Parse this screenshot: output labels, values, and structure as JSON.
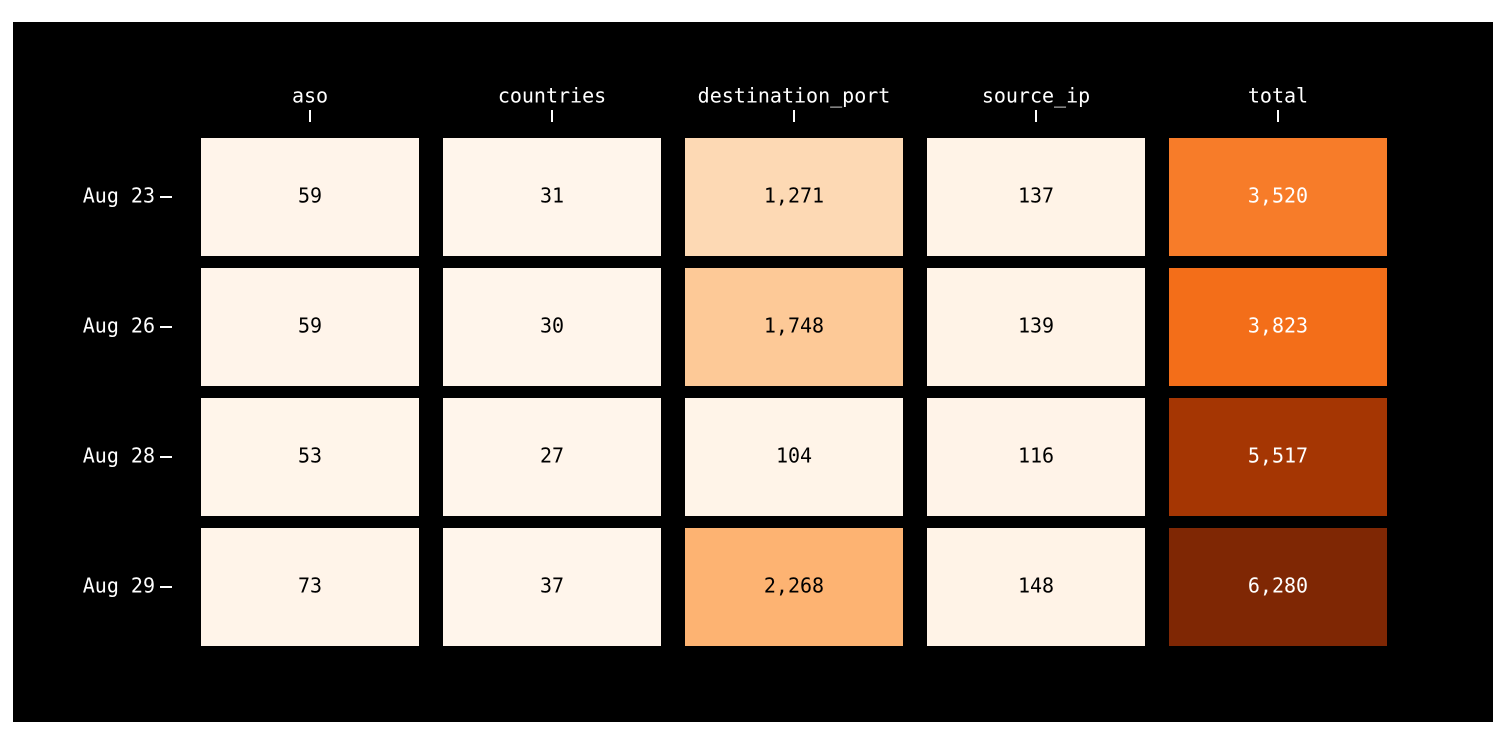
{
  "chart_data": {
    "type": "heatmap",
    "columns": [
      "aso",
      "countries",
      "destination_port",
      "source_ip",
      "total"
    ],
    "rows": [
      "Aug 23",
      "Aug 26",
      "Aug 28",
      "Aug 29"
    ],
    "values": [
      [
        59,
        31,
        1271,
        137,
        3520
      ],
      [
        59,
        30,
        1748,
        139,
        3823
      ],
      [
        53,
        27,
        104,
        116,
        5517
      ],
      [
        73,
        37,
        2268,
        148,
        6280
      ]
    ],
    "value_labels": [
      [
        "59",
        "31",
        "1,271",
        "137",
        "3,520"
      ],
      [
        "59",
        "30",
        "1,748",
        "139",
        "3,823"
      ],
      [
        "53",
        "27",
        "104",
        "116",
        "5,517"
      ],
      [
        "73",
        "37",
        "2,268",
        "148",
        "6,280"
      ]
    ],
    "colorscale": "Oranges"
  }
}
